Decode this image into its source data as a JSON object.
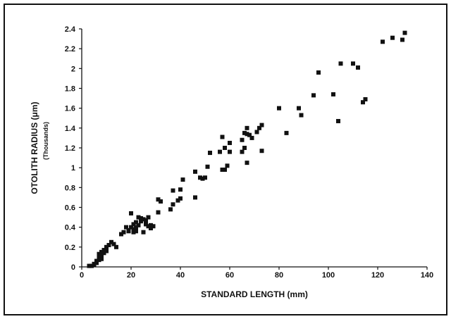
{
  "chart_data": {
    "type": "scatter",
    "xlabel": "STANDARD LENGTH (mm)",
    "ylabel": "OTOLITH RADIUS (μm)",
    "ylabel_sub": "(Thousands)",
    "xlim": [
      0,
      140
    ],
    "ylim": [
      0,
      2.4
    ],
    "xticks": [
      "0",
      "20",
      "40",
      "60",
      "80",
      "100",
      "120",
      "140"
    ],
    "yticks": [
      "0",
      "0.2",
      "0.4",
      "0.6",
      "0.8",
      "1",
      "1.2",
      "1.4",
      "1.6",
      "1.8",
      "2",
      "2.2",
      "2.4"
    ],
    "grid": false,
    "series": [
      {
        "marker": "square",
        "color": "#111111",
        "x": [
          3,
          4,
          5,
          5,
          6,
          6,
          7,
          7,
          7,
          8,
          8,
          8,
          9,
          9,
          10,
          10,
          11,
          12,
          13,
          14,
          16,
          17,
          18,
          19,
          19,
          20,
          20,
          21,
          21,
          21,
          22,
          22,
          22,
          23,
          23,
          24,
          24,
          25,
          25,
          26,
          26,
          27,
          27,
          28,
          28,
          29,
          31,
          31,
          32,
          36,
          37,
          37,
          39,
          40,
          40,
          41,
          46,
          46,
          48,
          49,
          50,
          51,
          52,
          52,
          56,
          57,
          57,
          58,
          58,
          59,
          60,
          60,
          65,
          65,
          66,
          66,
          67,
          67,
          67,
          68,
          69,
          71,
          72,
          73,
          73,
          80,
          83,
          88,
          89,
          94,
          96,
          102,
          104,
          105,
          110,
          112,
          114,
          115,
          122,
          126,
          130,
          131
        ],
        "y": [
          0.01,
          0.01,
          0.02,
          0.03,
          0.04,
          0.06,
          0.07,
          0.1,
          0.13,
          0.08,
          0.12,
          0.15,
          0.14,
          0.17,
          0.16,
          0.2,
          0.22,
          0.25,
          0.23,
          0.2,
          0.33,
          0.35,
          0.4,
          0.37,
          0.36,
          0.4,
          0.54,
          0.43,
          0.35,
          0.38,
          0.4,
          0.36,
          0.45,
          0.42,
          0.5,
          0.46,
          0.49,
          0.35,
          0.48,
          0.47,
          0.43,
          0.5,
          0.41,
          0.39,
          0.42,
          0.41,
          0.68,
          0.55,
          0.66,
          0.58,
          0.63,
          0.77,
          0.67,
          0.69,
          0.78,
          0.88,
          0.7,
          0.96,
          0.9,
          0.89,
          0.9,
          1.01,
          1.15,
          1.15,
          1.16,
          0.98,
          1.31,
          0.98,
          1.2,
          1.02,
          1.25,
          1.16,
          1.28,
          1.16,
          1.35,
          1.2,
          1.05,
          1.4,
          1.34,
          1.33,
          1.3,
          1.36,
          1.4,
          1.43,
          1.17,
          1.6,
          1.35,
          1.6,
          1.53,
          1.73,
          1.96,
          1.74,
          1.47,
          2.05,
          2.05,
          2.01,
          1.66,
          1.69,
          2.27,
          2.31,
          2.29,
          2.36
        ]
      }
    ]
  }
}
